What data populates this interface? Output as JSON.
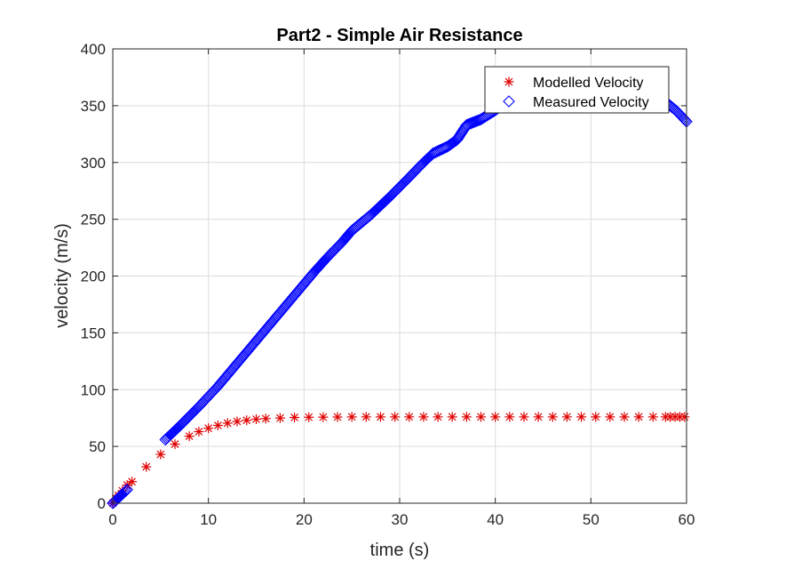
{
  "chart_data": {
    "type": "scatter",
    "title": "Part2 - Simple Air Resistance",
    "xlabel": "time (s)",
    "ylabel": "velocity (m/s)",
    "xlim": [
      0,
      60
    ],
    "ylim": [
      0,
      400
    ],
    "xticks": [
      0,
      10,
      20,
      30,
      40,
      50,
      60
    ],
    "yticks": [
      0,
      50,
      100,
      150,
      200,
      250,
      300,
      350,
      400
    ],
    "grid": true,
    "legend_position": "top-right",
    "series": [
      {
        "name": "Modelled Velocity",
        "marker": "asterisk",
        "color": "#e00000",
        "points": [
          [
            0,
            0
          ],
          [
            0.3,
            4
          ],
          [
            0.6,
            7
          ],
          [
            1.0,
            11
          ],
          [
            1.5,
            16
          ],
          [
            2.0,
            19
          ],
          [
            3.5,
            32
          ],
          [
            5.0,
            43
          ],
          [
            6.5,
            52
          ],
          [
            8.0,
            59
          ],
          [
            9.0,
            63
          ],
          [
            10.0,
            66
          ],
          [
            11.0,
            68.5
          ],
          [
            12.0,
            70.5
          ],
          [
            13.0,
            72
          ],
          [
            14.0,
            73
          ],
          [
            15.0,
            74
          ],
          [
            16.0,
            74.5
          ],
          [
            17.5,
            75
          ],
          [
            19.0,
            75.5
          ],
          [
            20.5,
            75.7
          ],
          [
            22.0,
            75.8
          ],
          [
            23.5,
            75.9
          ],
          [
            25.0,
            76
          ],
          [
            26.5,
            76
          ],
          [
            28.0,
            76
          ],
          [
            29.5,
            76
          ],
          [
            31.0,
            76
          ],
          [
            32.5,
            76
          ],
          [
            34.0,
            76
          ],
          [
            35.5,
            76
          ],
          [
            37.0,
            76
          ],
          [
            38.5,
            76
          ],
          [
            40.0,
            76
          ],
          [
            41.5,
            76
          ],
          [
            43.0,
            76
          ],
          [
            44.5,
            76
          ],
          [
            46.0,
            76
          ],
          [
            47.5,
            76
          ],
          [
            49.0,
            76
          ],
          [
            50.5,
            76
          ],
          [
            52.0,
            76
          ],
          [
            53.5,
            76
          ],
          [
            55.0,
            76
          ],
          [
            56.5,
            76
          ],
          [
            57.8,
            76
          ],
          [
            58.3,
            76
          ],
          [
            58.8,
            76
          ],
          [
            59.3,
            76
          ],
          [
            59.8,
            76
          ]
        ]
      },
      {
        "name": "Measured Velocity",
        "marker": "diamond",
        "color": "#0000ff",
        "segments": [
          [
            [
              0,
              0
            ],
            [
              0.5,
              4
            ],
            [
              1.0,
              8
            ],
            [
              1.5,
              12
            ]
          ],
          [
            [
              5.5,
              56
            ],
            [
              7,
              68
            ],
            [
              9,
              85
            ],
            [
              11,
              103
            ],
            [
              13,
              123
            ],
            [
              15,
              143
            ],
            [
              17,
              163
            ],
            [
              19,
              183
            ],
            [
              21,
              203
            ],
            [
              22.5,
              217
            ],
            [
              24,
              230
            ],
            [
              25,
              240
            ],
            [
              27,
              254
            ],
            [
              29,
              270
            ],
            [
              31,
              287
            ],
            [
              32.5,
              300
            ],
            [
              33.5,
              308
            ],
            [
              35,
              314
            ],
            [
              36,
              320
            ],
            [
              37,
              333
            ],
            [
              38.5,
              338
            ],
            [
              40,
              346
            ],
            [
              41,
              352
            ],
            [
              43,
              356
            ],
            [
              46,
              358
            ],
            [
              50,
              358
            ],
            [
              54,
              358
            ],
            [
              57,
              357
            ],
            [
              58,
              352
            ],
            [
              59,
              345
            ],
            [
              60,
              336
            ]
          ]
        ]
      }
    ]
  }
}
